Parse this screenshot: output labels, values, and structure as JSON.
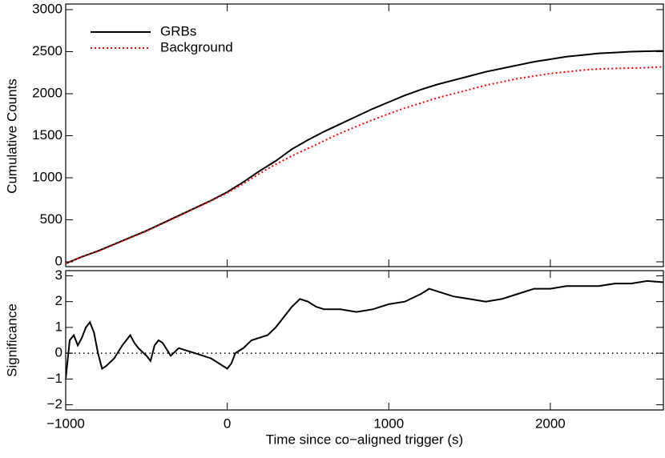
{
  "chart_data": [
    {
      "type": "line",
      "ylabel": "Cumulative Counts",
      "x": [
        -1000,
        -900,
        -800,
        -700,
        -600,
        -500,
        -400,
        -300,
        -200,
        -100,
        0,
        100,
        200,
        300,
        400,
        500,
        600,
        700,
        800,
        900,
        1000,
        1100,
        1200,
        1300,
        1400,
        1500,
        1600,
        1700,
        1800,
        1900,
        2000,
        2100,
        2200,
        2300,
        2400,
        2500,
        2600,
        2700
      ],
      "series": [
        {
          "name": "GRBs",
          "color": "#000000",
          "style": "solid",
          "values": [
            -20,
            60,
            130,
            210,
            290,
            370,
            460,
            550,
            640,
            730,
            830,
            950,
            1080,
            1200,
            1340,
            1450,
            1550,
            1640,
            1730,
            1820,
            1900,
            1980,
            2050,
            2110,
            2160,
            2210,
            2260,
            2300,
            2340,
            2380,
            2410,
            2440,
            2460,
            2480,
            2490,
            2500,
            2505,
            2510
          ]
        },
        {
          "name": "Background",
          "color": "#ff0000",
          "style": "dotted",
          "values": [
            -20,
            60,
            125,
            205,
            285,
            365,
            455,
            545,
            635,
            725,
            820,
            930,
            1050,
            1160,
            1260,
            1350,
            1440,
            1530,
            1610,
            1690,
            1760,
            1830,
            1890,
            1950,
            2000,
            2050,
            2100,
            2140,
            2180,
            2210,
            2240,
            2260,
            2280,
            2295,
            2300,
            2305,
            2310,
            2320
          ]
        }
      ],
      "xlim": [
        -1000,
        2700
      ],
      "xticks": [
        -1000,
        0,
        1000,
        2000
      ],
      "ylim": [
        -57,
        3067
      ],
      "yticks": [
        0,
        500,
        1000,
        1500,
        2000,
        2500,
        3000
      ],
      "legend": "upper left"
    },
    {
      "type": "line",
      "ylabel": "Significance",
      "xlabel": "Time since co−aligned trigger (s)",
      "x": [
        -1000,
        -975,
        -950,
        -925,
        -900,
        -875,
        -850,
        -825,
        -800,
        -775,
        -750,
        -700,
        -650,
        -600,
        -575,
        -550,
        -500,
        -475,
        -450,
        -425,
        -400,
        -350,
        -300,
        -250,
        -200,
        -150,
        -100,
        -50,
        0,
        25,
        50,
        100,
        150,
        200,
        250,
        300,
        350,
        400,
        450,
        500,
        550,
        600,
        700,
        800,
        900,
        1000,
        1100,
        1200,
        1250,
        1300,
        1400,
        1500,
        1600,
        1700,
        1800,
        1900,
        2000,
        2100,
        2200,
        2300,
        2400,
        2500,
        2600,
        2700
      ],
      "series": [
        {
          "name": "Significance",
          "color": "#000000",
          "style": "solid",
          "values": [
            -1,
            0.5,
            0.7,
            0.3,
            0.6,
            1.0,
            1.2,
            0.8,
            0.0,
            -0.6,
            -0.5,
            -0.2,
            0.3,
            0.7,
            0.4,
            0.2,
            -0.1,
            -0.3,
            0.3,
            0.5,
            0.4,
            -0.1,
            0.2,
            0.1,
            0.0,
            -0.1,
            -0.2,
            -0.4,
            -0.6,
            -0.4,
            0.0,
            0.2,
            0.5,
            0.6,
            0.7,
            1.0,
            1.4,
            1.8,
            2.1,
            2.0,
            1.8,
            1.7,
            1.7,
            1.6,
            1.7,
            1.9,
            2.0,
            2.3,
            2.5,
            2.4,
            2.2,
            2.1,
            2.0,
            2.1,
            2.3,
            2.5,
            2.5,
            2.6,
            2.6,
            2.6,
            2.7,
            2.7,
            2.8,
            2.75
          ]
        }
      ],
      "xlim": [
        -1000,
        2700
      ],
      "xticks": [
        {
          "value": -1000,
          "label": "−1000"
        },
        0,
        1000,
        2000
      ],
      "ylim": [
        -2.2,
        3.2
      ],
      "yticks": [
        {
          "value": -2,
          "label": "−2"
        },
        {
          "value": -1,
          "label": "−1"
        },
        0,
        1,
        2,
        3
      ],
      "reference_line": 0
    }
  ]
}
